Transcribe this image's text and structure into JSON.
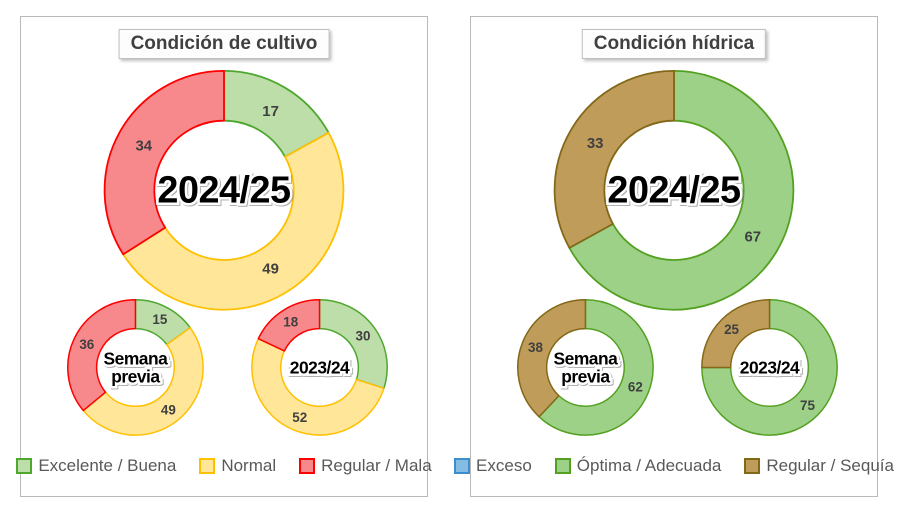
{
  "chart_data": [
    {
      "type": "pie",
      "variant": "donut-multiples",
      "title": "Condición de cultivo",
      "legend_position": "bottom",
      "categories": [
        "Excelente / Buena",
        "Normal",
        "Regular / Mala"
      ],
      "colors": [
        {
          "fill": "#BDDDA9",
          "stroke": "#4EA72E"
        },
        {
          "fill": "#FFE699",
          "stroke": "#FFC000"
        },
        {
          "fill": "#F7888B",
          "stroke": "#FF0000"
        }
      ],
      "donuts": [
        {
          "center_label": "2024/25",
          "values": [
            17,
            49,
            34
          ]
        },
        {
          "center_label": "Semana\nprevia",
          "values": [
            15,
            49,
            36
          ]
        },
        {
          "center_label": "2023/24",
          "values": [
            30,
            52,
            18
          ]
        }
      ]
    },
    {
      "type": "pie",
      "variant": "donut-multiples",
      "title": "Condición hídrica",
      "legend_position": "bottom",
      "categories": [
        "Exceso",
        "Óptima / Adecuada",
        "Regular / Sequía"
      ],
      "colors": [
        {
          "fill": "#85BCE4",
          "stroke": "#3D8EC9"
        },
        {
          "fill": "#9DD188",
          "stroke": "#54A021"
        },
        {
          "fill": "#C09C5A",
          "stroke": "#826817"
        }
      ],
      "donuts": [
        {
          "center_label": "2024/25",
          "values": [
            0,
            67,
            33
          ]
        },
        {
          "center_label": "Semana\nprevia",
          "values": [
            0,
            62,
            38
          ]
        },
        {
          "center_label": "2023/24",
          "values": [
            0,
            75,
            25
          ]
        }
      ]
    }
  ]
}
